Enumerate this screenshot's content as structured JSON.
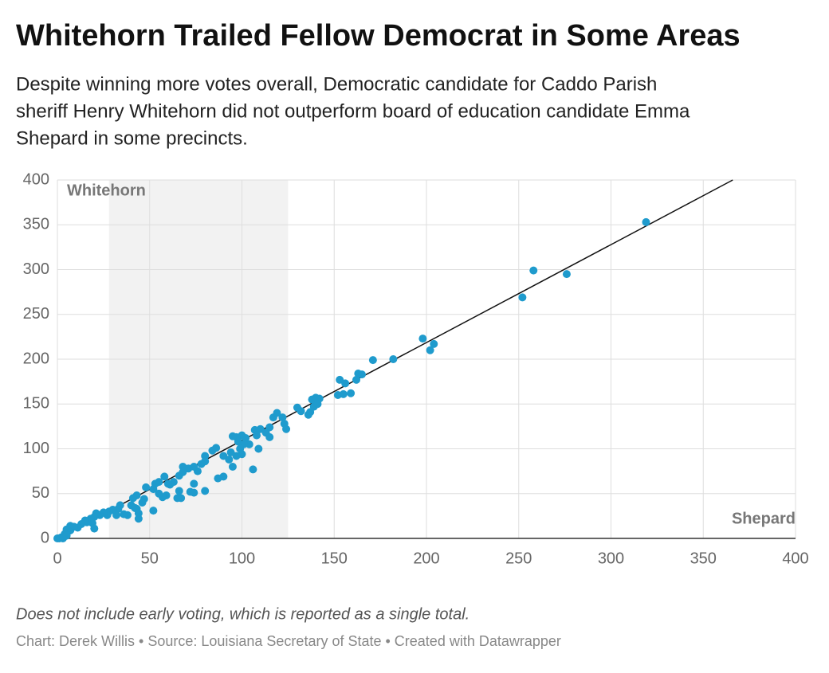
{
  "chart_data": {
    "type": "scatter",
    "title": "Whitehorn Trailed Fellow Democrat in Some Areas",
    "subtitle": [
      "Despite winning more votes overall, Democratic candidate for Caddo Parish",
      "sheriff Henry Whitehorn did not outperform board of education candidate Emma",
      "Shepard in some precincts."
    ],
    "x_label": "Shepard",
    "y_label": "Whitehorn",
    "footnote": "Does not include early voting, which is reported as a single total.",
    "credit": "Chart: Derek Willis • Source: Louisiana Secretary of State • Created with Datawrapper",
    "color": "#1f9bcd",
    "highlight_x": [
      28,
      125
    ],
    "reference_line": {
      "x": [
        0,
        366
      ],
      "y": [
        0,
        400
      ]
    },
    "xlim": [
      0,
      400
    ],
    "xticks": [
      0,
      50,
      100,
      150,
      200,
      250,
      300,
      350,
      400
    ],
    "ylim": [
      0,
      400
    ],
    "yticks": [
      0,
      50,
      100,
      150,
      200,
      250,
      300,
      350,
      400
    ],
    "grid": true,
    "x": [
      319,
      258,
      276,
      252,
      198,
      202,
      204,
      171,
      182,
      153,
      156,
      163,
      165,
      162,
      159,
      152,
      155,
      140,
      142,
      138,
      139,
      141,
      130,
      132,
      136,
      137,
      122,
      123,
      124,
      117,
      119,
      115,
      113,
      115,
      107,
      110,
      108,
      104,
      109,
      106,
      100,
      97,
      98,
      102,
      101,
      99,
      100,
      97,
      95,
      94,
      93,
      95,
      90,
      90,
      87,
      86,
      84,
      80,
      80,
      78,
      80,
      76,
      74,
      74,
      71,
      68,
      66,
      68,
      74,
      72,
      67,
      65,
      66,
      63,
      61,
      60,
      58,
      59,
      57,
      55,
      53,
      55,
      52,
      52,
      48,
      47,
      46,
      43,
      43,
      44,
      44,
      41,
      40,
      42,
      38,
      36,
      34,
      33,
      32,
      30,
      28,
      27,
      25,
      23,
      21,
      20,
      19,
      20,
      18,
      16,
      15,
      13,
      11,
      9,
      7,
      7,
      6,
      5,
      4,
      3,
      2,
      1,
      0,
      3,
      5
    ],
    "values": [
      353,
      299,
      295,
      269,
      223,
      210,
      217,
      199,
      200,
      177,
      173,
      184,
      183,
      177,
      162,
      160,
      161,
      157,
      156,
      155,
      147,
      150,
      146,
      142,
      138,
      141,
      135,
      128,
      122,
      135,
      140,
      124,
      118,
      113,
      121,
      122,
      115,
      105,
      100,
      77,
      115,
      113,
      108,
      112,
      105,
      100,
      94,
      92,
      114,
      96,
      88,
      80,
      92,
      69,
      67,
      101,
      98,
      92,
      86,
      83,
      53,
      75,
      80,
      61,
      78,
      80,
      70,
      74,
      51,
      52,
      45,
      45,
      53,
      63,
      60,
      61,
      69,
      48,
      46,
      50,
      61,
      63,
      55,
      31,
      57,
      44,
      40,
      48,
      33,
      28,
      22,
      45,
      37,
      34,
      26,
      27,
      37,
      33,
      26,
      32,
      30,
      26,
      29,
      26,
      28,
      24,
      17,
      11,
      22,
      18,
      20,
      16,
      12,
      13,
      9,
      14,
      8,
      10,
      5,
      2,
      1,
      0,
      0,
      0,
      3
    ]
  }
}
